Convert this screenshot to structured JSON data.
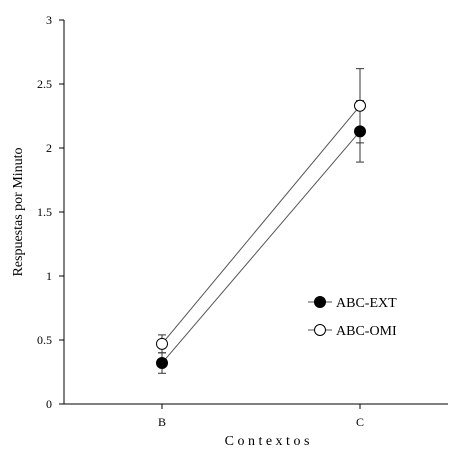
{
  "chart_data": {
    "type": "line",
    "categories": [
      "B",
      "C"
    ],
    "xlabel": "C o n t e x t o s",
    "ylabel": "Respuestas  por  Minuto",
    "ylim": [
      0,
      3
    ],
    "yticks": [
      "0",
      "0.5",
      "1",
      "1.5",
      "2",
      "2.5",
      "3"
    ],
    "grid": false,
    "legend_position": "lower-right",
    "series": [
      {
        "name": "ABC-EXT",
        "values": [
          0.32,
          2.13
        ],
        "errors": [
          0.08,
          0.24
        ],
        "marker": "filled-circle",
        "color": "#000000"
      },
      {
        "name": "ABC-OMI",
        "values": [
          0.47,
          2.33
        ],
        "errors": [
          0.07,
          0.29
        ],
        "marker": "open-circle",
        "color": "#000000"
      }
    ]
  }
}
